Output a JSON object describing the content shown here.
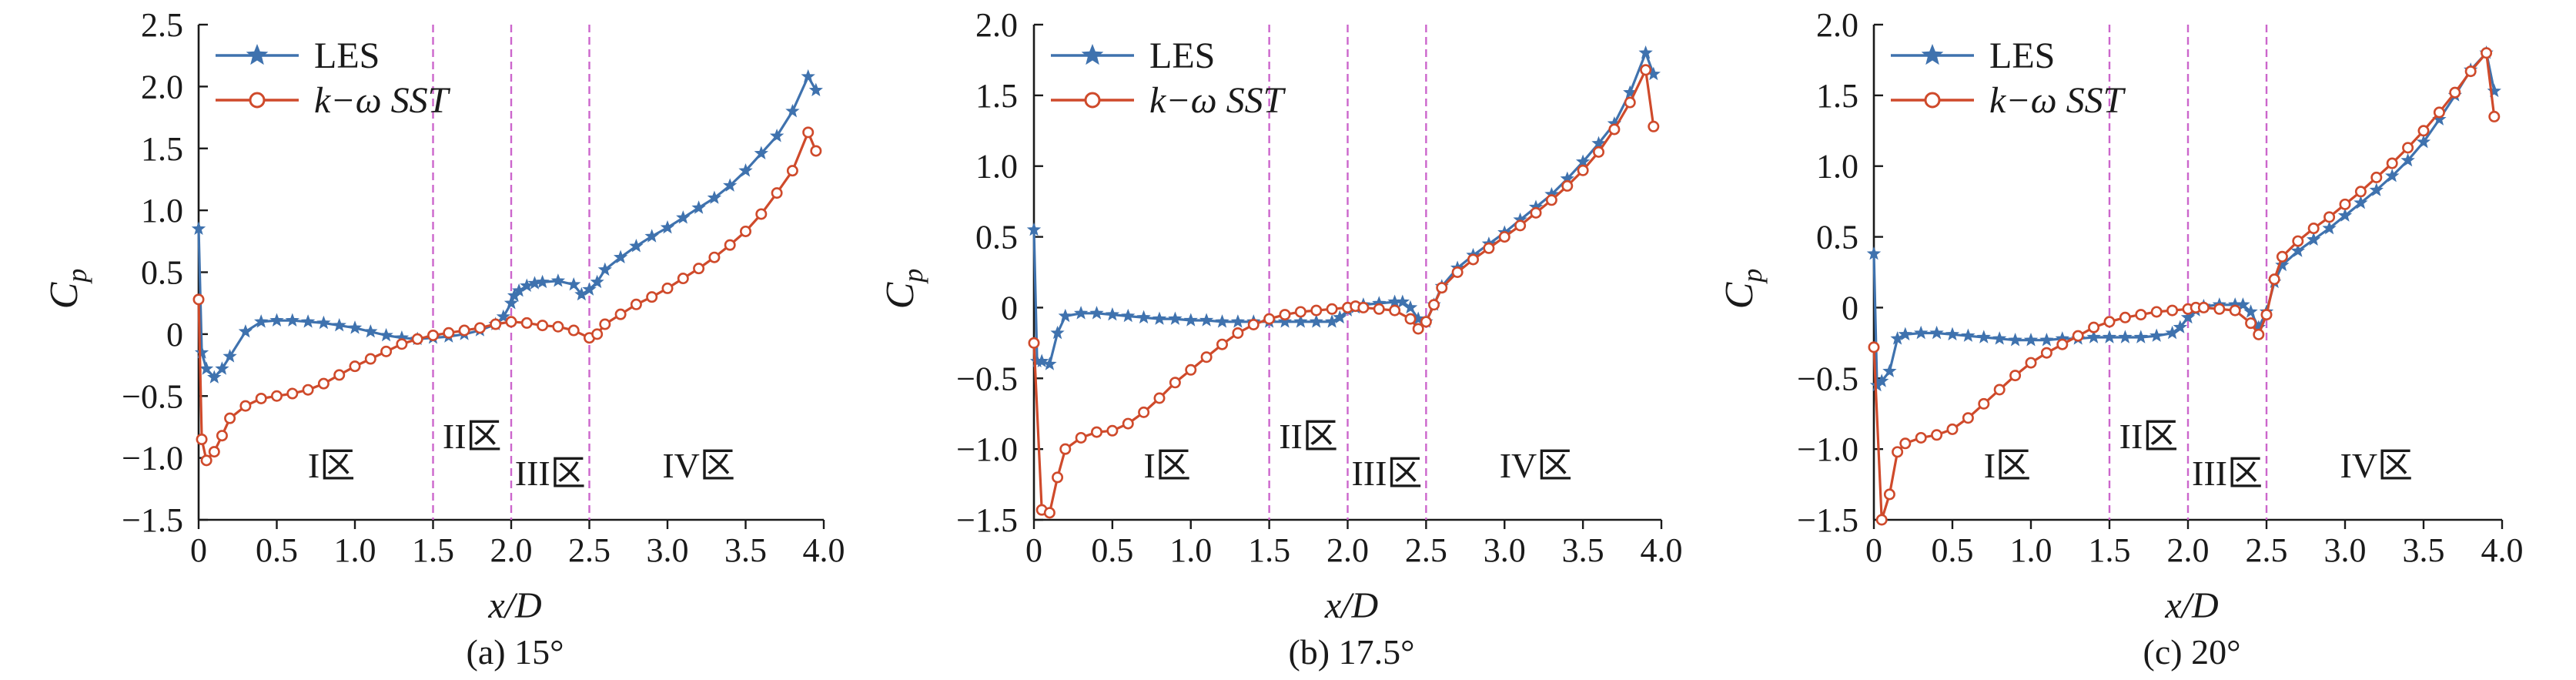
{
  "colors": {
    "les": "#3f72ae",
    "sst": "#cf4a2b",
    "zone_line": "#cc66cc",
    "axis": "#1a1a1a"
  },
  "shared": {
    "ylabel": "C",
    "ylabel_sub": "p",
    "xlabel": "x/D",
    "legend": [
      "LES",
      "k−ω SST"
    ],
    "zone_labels": [
      "I区",
      "II区",
      "III区",
      "IV区"
    ],
    "zone_boundaries": [
      1.5,
      2.0,
      2.5
    ],
    "xticks": [
      "0",
      "0.5",
      "1.0",
      "1.5",
      "2.0",
      "2.5",
      "3.0",
      "3.5",
      "4.0"
    ],
    "xlim": [
      0,
      4.0
    ]
  },
  "chart_data": [
    {
      "type": "line",
      "caption": "(a) 15°",
      "ylim": [
        -1.5,
        2.5
      ],
      "yticks": [
        "2.5",
        "2.0",
        "1.5",
        "1.0",
        "0.5",
        "0",
        "−0.5",
        "−1.0",
        "−1.5"
      ],
      "series": [
        {
          "name": "LES",
          "marker": "star",
          "x": [
            0,
            0.02,
            0.05,
            0.1,
            0.15,
            0.2,
            0.3,
            0.4,
            0.5,
            0.6,
            0.7,
            0.8,
            0.9,
            1.0,
            1.1,
            1.2,
            1.3,
            1.4,
            1.5,
            1.6,
            1.7,
            1.8,
            1.9,
            1.95,
            2.0,
            2.02,
            2.05,
            2.1,
            2.15,
            2.2,
            2.3,
            2.4,
            2.45,
            2.5,
            2.55,
            2.6,
            2.7,
            2.8,
            2.9,
            3.0,
            3.1,
            3.2,
            3.3,
            3.4,
            3.5,
            3.6,
            3.7,
            3.8,
            3.9,
            3.95
          ],
          "y": [
            0.85,
            -0.15,
            -0.28,
            -0.35,
            -0.28,
            -0.18,
            0.02,
            0.1,
            0.11,
            0.11,
            0.1,
            0.09,
            0.07,
            0.05,
            0.02,
            -0.01,
            -0.03,
            -0.04,
            -0.03,
            -0.02,
            0.0,
            0.03,
            0.08,
            0.14,
            0.25,
            0.31,
            0.35,
            0.39,
            0.41,
            0.42,
            0.43,
            0.4,
            0.32,
            0.36,
            0.42,
            0.52,
            0.62,
            0.71,
            0.79,
            0.86,
            0.94,
            1.02,
            1.1,
            1.2,
            1.32,
            1.46,
            1.6,
            1.8,
            2.08,
            1.97
          ]
        },
        {
          "name": "k−ω SST",
          "marker": "circle",
          "x": [
            0,
            0.02,
            0.05,
            0.1,
            0.15,
            0.2,
            0.3,
            0.4,
            0.5,
            0.6,
            0.7,
            0.8,
            0.9,
            1.0,
            1.1,
            1.2,
            1.3,
            1.4,
            1.5,
            1.6,
            1.7,
            1.8,
            1.9,
            2.0,
            2.1,
            2.2,
            2.3,
            2.4,
            2.5,
            2.55,
            2.6,
            2.7,
            2.8,
            2.9,
            3.0,
            3.1,
            3.2,
            3.3,
            3.4,
            3.5,
            3.6,
            3.7,
            3.8,
            3.9,
            3.95
          ],
          "y": [
            0.28,
            -0.85,
            -1.02,
            -0.95,
            -0.82,
            -0.68,
            -0.58,
            -0.52,
            -0.5,
            -0.48,
            -0.45,
            -0.4,
            -0.33,
            -0.26,
            -0.2,
            -0.14,
            -0.08,
            -0.04,
            -0.01,
            0.01,
            0.03,
            0.05,
            0.08,
            0.1,
            0.09,
            0.07,
            0.06,
            0.03,
            -0.03,
            0.0,
            0.08,
            0.16,
            0.24,
            0.3,
            0.37,
            0.45,
            0.53,
            0.62,
            0.72,
            0.83,
            0.97,
            1.14,
            1.32,
            1.63,
            1.48
          ]
        }
      ]
    },
    {
      "type": "line",
      "caption": "(b) 17.5°",
      "ylim": [
        -1.5,
        2.0
      ],
      "yticks": [
        "2.0",
        "1.5",
        "1.0",
        "0.5",
        "0",
        "−0.5",
        "−1.0",
        "−1.5"
      ],
      "series": [
        {
          "name": "LES",
          "marker": "star",
          "x": [
            0,
            0.02,
            0.05,
            0.1,
            0.15,
            0.2,
            0.3,
            0.4,
            0.5,
            0.6,
            0.7,
            0.8,
            0.9,
            1.0,
            1.1,
            1.2,
            1.3,
            1.4,
            1.5,
            1.6,
            1.7,
            1.8,
            1.9,
            1.95,
            2.0,
            2.05,
            2.1,
            2.2,
            2.3,
            2.35,
            2.4,
            2.45,
            2.5,
            2.55,
            2.6,
            2.7,
            2.8,
            2.9,
            3.0,
            3.1,
            3.2,
            3.3,
            3.4,
            3.5,
            3.6,
            3.7,
            3.8,
            3.9,
            3.95
          ],
          "y": [
            0.55,
            -0.38,
            -0.38,
            -0.4,
            -0.18,
            -0.06,
            -0.04,
            -0.04,
            -0.05,
            -0.06,
            -0.07,
            -0.08,
            -0.08,
            -0.09,
            -0.09,
            -0.1,
            -0.1,
            -0.1,
            -0.1,
            -0.1,
            -0.1,
            -0.1,
            -0.1,
            -0.07,
            -0.02,
            0.0,
            0.02,
            0.03,
            0.04,
            0.04,
            0.0,
            -0.08,
            -0.1,
            0.02,
            0.15,
            0.28,
            0.37,
            0.45,
            0.53,
            0.62,
            0.71,
            0.8,
            0.91,
            1.03,
            1.16,
            1.3,
            1.52,
            1.8,
            1.65
          ]
        },
        {
          "name": "k−ω SST",
          "marker": "circle",
          "x": [
            0,
            0.05,
            0.1,
            0.15,
            0.2,
            0.3,
            0.4,
            0.5,
            0.6,
            0.7,
            0.8,
            0.9,
            1.0,
            1.1,
            1.2,
            1.3,
            1.4,
            1.5,
            1.6,
            1.7,
            1.8,
            1.9,
            2.0,
            2.05,
            2.1,
            2.2,
            2.3,
            2.4,
            2.45,
            2.5,
            2.55,
            2.6,
            2.7,
            2.8,
            2.9,
            3.0,
            3.1,
            3.2,
            3.3,
            3.4,
            3.5,
            3.6,
            3.7,
            3.8,
            3.9,
            3.95
          ],
          "y": [
            -0.25,
            -1.43,
            -1.45,
            -1.2,
            -1.0,
            -0.92,
            -0.88,
            -0.87,
            -0.82,
            -0.74,
            -0.64,
            -0.53,
            -0.44,
            -0.35,
            -0.26,
            -0.18,
            -0.12,
            -0.08,
            -0.05,
            -0.03,
            -0.02,
            -0.01,
            0.0,
            0.01,
            0.0,
            -0.01,
            -0.02,
            -0.08,
            -0.15,
            -0.1,
            0.02,
            0.14,
            0.25,
            0.34,
            0.42,
            0.5,
            0.58,
            0.67,
            0.76,
            0.86,
            0.97,
            1.1,
            1.26,
            1.45,
            1.68,
            1.28
          ]
        }
      ]
    },
    {
      "type": "line",
      "caption": "(c) 20°",
      "ylim": [
        -1.5,
        2.0
      ],
      "yticks": [
        "2.0",
        "1.5",
        "1.0",
        "0.5",
        "0",
        "−0.5",
        "−1.0",
        "−1.5"
      ],
      "series": [
        {
          "name": "LES",
          "marker": "star",
          "x": [
            0,
            0.02,
            0.05,
            0.1,
            0.15,
            0.2,
            0.3,
            0.4,
            0.5,
            0.6,
            0.7,
            0.8,
            0.9,
            1.0,
            1.1,
            1.2,
            1.3,
            1.4,
            1.5,
            1.6,
            1.7,
            1.8,
            1.9,
            1.95,
            2.0,
            2.05,
            2.1,
            2.2,
            2.3,
            2.35,
            2.4,
            2.45,
            2.5,
            2.55,
            2.6,
            2.7,
            2.8,
            2.9,
            3.0,
            3.1,
            3.2,
            3.3,
            3.4,
            3.5,
            3.6,
            3.7,
            3.8,
            3.9,
            3.95
          ],
          "y": [
            0.38,
            -0.55,
            -0.52,
            -0.45,
            -0.22,
            -0.19,
            -0.18,
            -0.18,
            -0.19,
            -0.2,
            -0.21,
            -0.22,
            -0.23,
            -0.23,
            -0.23,
            -0.22,
            -0.22,
            -0.21,
            -0.21,
            -0.21,
            -0.21,
            -0.2,
            -0.18,
            -0.14,
            -0.07,
            -0.02,
            0.01,
            0.02,
            0.02,
            0.02,
            -0.03,
            -0.14,
            -0.03,
            0.18,
            0.3,
            0.4,
            0.48,
            0.56,
            0.65,
            0.74,
            0.83,
            0.93,
            1.04,
            1.17,
            1.33,
            1.5,
            1.68,
            1.8,
            1.53
          ]
        },
        {
          "name": "k−ω SST",
          "marker": "circle",
          "x": [
            0,
            0.05,
            0.1,
            0.15,
            0.2,
            0.3,
            0.4,
            0.5,
            0.6,
            0.7,
            0.8,
            0.9,
            1.0,
            1.1,
            1.2,
            1.3,
            1.4,
            1.5,
            1.6,
            1.7,
            1.8,
            1.9,
            2.0,
            2.05,
            2.1,
            2.2,
            2.3,
            2.4,
            2.45,
            2.5,
            2.55,
            2.6,
            2.7,
            2.8,
            2.9,
            3.0,
            3.1,
            3.2,
            3.3,
            3.4,
            3.5,
            3.6,
            3.7,
            3.8,
            3.9,
            3.95
          ],
          "y": [
            -0.28,
            -1.5,
            -1.32,
            -1.02,
            -0.96,
            -0.92,
            -0.9,
            -0.86,
            -0.78,
            -0.68,
            -0.58,
            -0.48,
            -0.39,
            -0.32,
            -0.26,
            -0.2,
            -0.14,
            -0.1,
            -0.07,
            -0.05,
            -0.03,
            -0.02,
            -0.01,
            0.0,
            0.0,
            -0.01,
            -0.02,
            -0.11,
            -0.19,
            -0.05,
            0.2,
            0.36,
            0.47,
            0.56,
            0.64,
            0.73,
            0.82,
            0.92,
            1.02,
            1.13,
            1.25,
            1.38,
            1.52,
            1.67,
            1.8,
            1.35
          ]
        }
      ]
    }
  ]
}
